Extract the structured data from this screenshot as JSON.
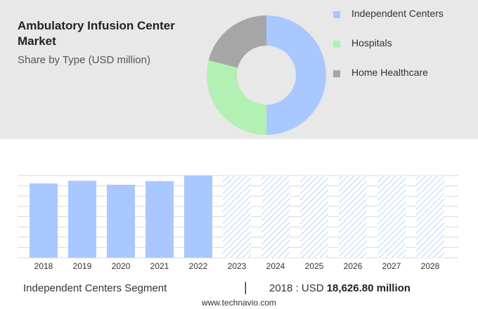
{
  "title": "Ambulatory Infusion Center Market",
  "subtitle": "Share by Type (USD million)",
  "colors": {
    "independent": "#a8c8ff",
    "hospitals": "#b3f0b3",
    "home": "#a6a6a6",
    "forecast_hatch": "#a8c8ff"
  },
  "chart_data": [
    {
      "type": "pie",
      "style": "donut",
      "slices": [
        {
          "name": "Independent Centers",
          "value": 50,
          "color": "#a8c8ff"
        },
        {
          "name": "Hospitals",
          "value": 29,
          "color": "#b3f0b3"
        },
        {
          "name": "Home Healthcare",
          "value": 21,
          "color": "#a6a6a6"
        }
      ],
      "legend_position": "right"
    },
    {
      "type": "bar",
      "categories": [
        "2018",
        "2019",
        "2020",
        "2021",
        "2022",
        "2023",
        "2024",
        "2025",
        "2026",
        "2027",
        "2028"
      ],
      "values": [
        18626.8,
        19300,
        18300,
        19200,
        20600,
        20600,
        20600,
        20600,
        20600,
        20600,
        20600
      ],
      "forecast_from": "2023",
      "forecast_style": "hatched",
      "ylim": [
        0,
        20600
      ],
      "grid": true,
      "value_labels": false
    }
  ],
  "footer": {
    "segment_label": "Independent Centers Segment",
    "separator": "|",
    "year_prefix": "2018 : USD",
    "value": "18,626.80 million"
  },
  "source": "www.technavio.com"
}
